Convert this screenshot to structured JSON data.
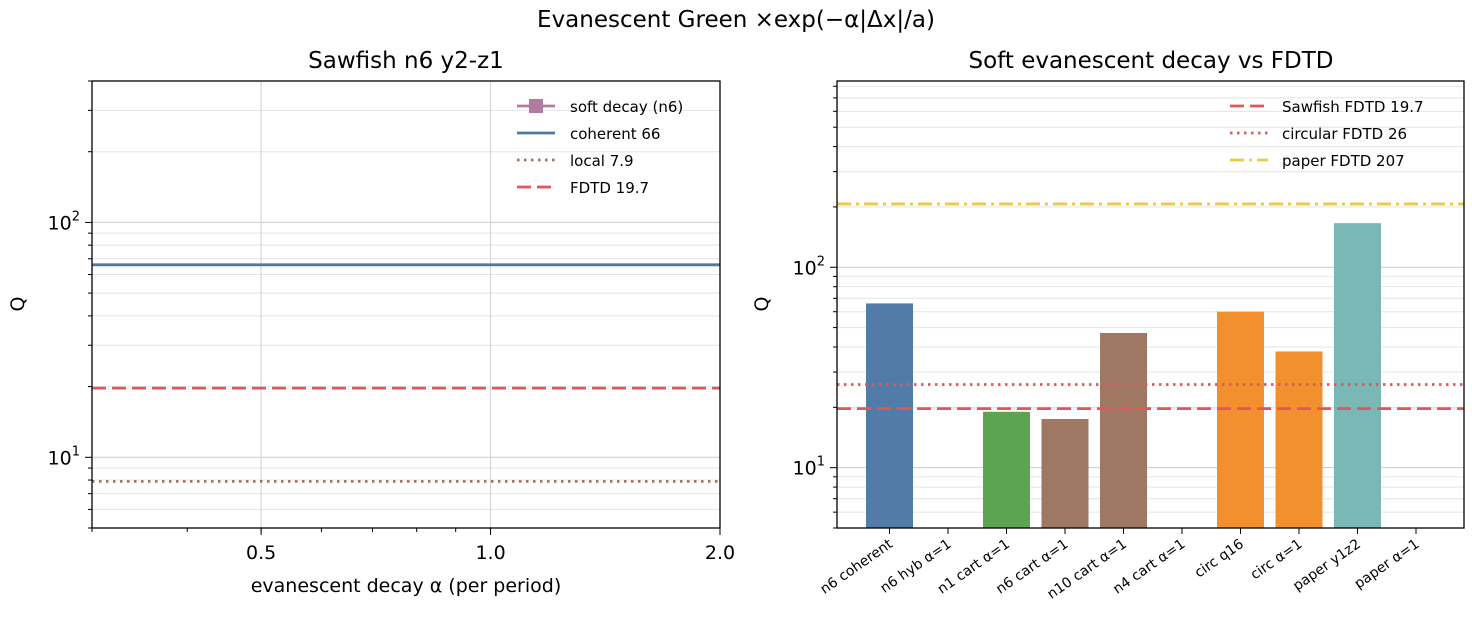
{
  "suptitle": "Evanescent Green ×exp(−α|Δx|/a)",
  "chart_data": [
    {
      "type": "line",
      "title": "Sawfish n6 y2-z1",
      "xlabel": "evanescent decay α (per period)",
      "ylabel": "Q",
      "x_scale": "log",
      "y_scale": "log",
      "xlim": [
        0.3,
        2.0
      ],
      "ylim": [
        5,
        400
      ],
      "x_ticks": [
        {
          "value": 0.5,
          "label": "0.5"
        },
        {
          "value": 1.0,
          "label": "1.0"
        },
        {
          "value": 2.0,
          "label": "2.0"
        }
      ],
      "y_ticks": [
        {
          "value": 10,
          "base": "10",
          "exp": "1"
        },
        {
          "value": 100,
          "base": "10",
          "exp": "2"
        }
      ],
      "grid": true,
      "legend_position": "top-right",
      "series": [
        {
          "name": "soft decay (n6)",
          "x": [],
          "y": [],
          "color": "#b07aa1",
          "style": "solid",
          "marker": "square"
        },
        {
          "name": "coherent 66",
          "hline": 66,
          "color": "#4e79a7",
          "style": "solid"
        },
        {
          "name": "local 7.9",
          "hline": 7.9,
          "color": "#9c755f",
          "style": "dotted"
        },
        {
          "name": "FDTD 19.7",
          "hline": 19.7,
          "color": "#e15759",
          "style": "dashed"
        }
      ]
    },
    {
      "type": "bar",
      "title": "Soft evanescent decay vs FDTD",
      "ylabel": "Q",
      "y_scale": "log",
      "ylim": [
        5,
        850
      ],
      "y_ticks": [
        {
          "value": 10,
          "base": "10",
          "exp": "1"
        },
        {
          "value": 100,
          "base": "10",
          "exp": "2"
        }
      ],
      "grid": true,
      "legend_position": "top-right",
      "categories": [
        "n6 coherent",
        "n6 hyb α=1",
        "n1 cart α=1",
        "n6 cart α=1",
        "n10 cart α=1",
        "n4 cart α=1",
        "circ q16",
        "circ α=1",
        "paper y1z2",
        "paper α=1"
      ],
      "values": [
        66,
        null,
        19,
        17.5,
        47,
        null,
        60,
        38,
        166,
        null
      ],
      "bar_colors": [
        "#4e79a7",
        "#4e79a7",
        "#59a14f",
        "#9c755f",
        "#9c755f",
        "#9c755f",
        "#f28e2b",
        "#f28e2b",
        "#76b7b2",
        "#76b7b2"
      ],
      "reference_lines": [
        {
          "name": "Sawfish FDTD 19.7",
          "value": 19.7,
          "color": "#e15759",
          "style": "dashed"
        },
        {
          "name": "circular FDTD 26",
          "value": 26,
          "color": "#e15759",
          "style": "dotted"
        },
        {
          "name": "paper FDTD 207",
          "value": 207,
          "color": "#edc948",
          "style": "dashdot"
        }
      ]
    }
  ]
}
